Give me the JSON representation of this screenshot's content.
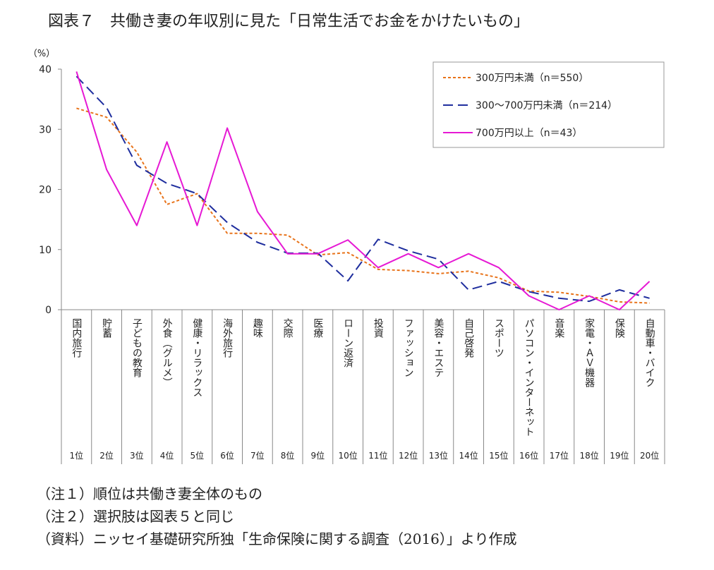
{
  "title": "図表７　共働き妻の年収別に見た「日常生活でお金をかけたいもの」",
  "notes": [
    "（注１）順位は共働き妻全体のもの",
    "（注２）選択肢は図表５と同じ",
    "（資料）ニッセイ基礎研究所独「生命保険に関する調査（2016）」より作成"
  ],
  "chart_data": {
    "type": "line",
    "ylabel": "（%）",
    "ylim": [
      0,
      40
    ],
    "yticks": [
      0,
      10,
      20,
      30,
      40
    ],
    "grid": false,
    "legend_position": "top-right",
    "categories": [
      "国内旅行",
      "貯蓄",
      "子どもの教育",
      "外食（グルメ）",
      "健康・リラックス",
      "海外旅行",
      "趣味",
      "交際",
      "医療",
      "ローン返済",
      "投資",
      "ファッション",
      "美容・エステ",
      "自己啓発",
      "スポーツ",
      "パソコン・インターネット",
      "音楽",
      "家電・ＡＶ機器",
      "保険",
      "自動車・バイク"
    ],
    "ranks": [
      "1位",
      "2位",
      "3位",
      "4位",
      "5位",
      "6位",
      "7位",
      "8位",
      "9位",
      "10位",
      "11位",
      "12位",
      "13位",
      "14位",
      "15位",
      "16位",
      "17位",
      "18位",
      "19位",
      "20位"
    ],
    "series": [
      {
        "name": "300万円未満（n＝550）",
        "color": "#E8731A",
        "dash": "dotted",
        "values": [
          33.5,
          32.0,
          26.2,
          17.5,
          19.3,
          12.7,
          12.7,
          12.4,
          9.1,
          9.5,
          6.7,
          6.5,
          6.0,
          6.4,
          5.3,
          3.1,
          2.9,
          2.2,
          1.3,
          1.1
        ]
      },
      {
        "name": "300～700万円未満（n＝214）",
        "color": "#1F2E9E",
        "dash": "dashed",
        "values": [
          38.8,
          33.6,
          24.0,
          21.0,
          19.3,
          14.5,
          11.2,
          9.4,
          9.4,
          4.8,
          11.7,
          9.8,
          8.4,
          3.3,
          4.7,
          3.0,
          1.9,
          1.4,
          3.3,
          1.9
        ]
      },
      {
        "name": "700万円以上（n＝43）",
        "color": "#E619D4",
        "dash": "solid",
        "values": [
          39.6,
          23.3,
          14.0,
          27.9,
          14.0,
          30.2,
          16.3,
          9.3,
          9.3,
          11.6,
          7.0,
          9.3,
          7.0,
          9.3,
          7.0,
          2.3,
          0.0,
          2.3,
          0.0,
          4.7
        ]
      }
    ]
  }
}
